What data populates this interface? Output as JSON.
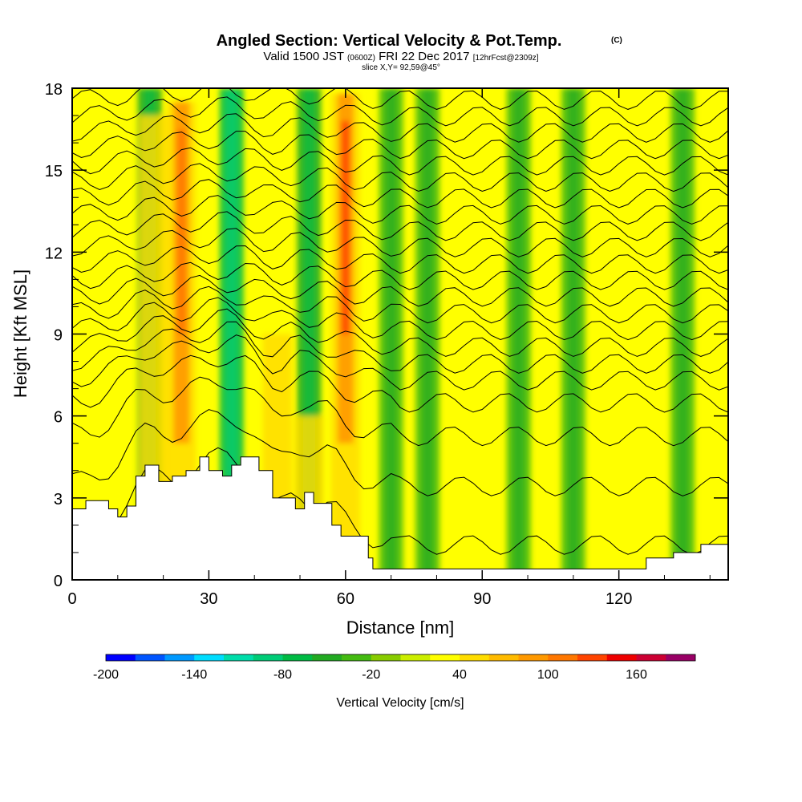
{
  "title": {
    "main": "Angled Section: Vertical Velocity & Pot.Temp.",
    "main_unit": "(C)",
    "line2_a": "Valid 1500 JST",
    "line2_b": "(0600Z)",
    "line2_c": "FRI 22 Dec 2017",
    "line2_d": "[12hrFcst@2309z]",
    "line3": "slice X,Y= 92,59@45°"
  },
  "chart_data": {
    "type": "heatmap",
    "xlabel": "Distance [nm]",
    "ylabel": "Height [Kft MSL]",
    "xlim": [
      0,
      144
    ],
    "ylim": [
      0,
      18
    ],
    "x_ticks": [
      "0",
      "30",
      "60",
      "90",
      "120"
    ],
    "x_tick_values": [
      0,
      30,
      60,
      90,
      120
    ],
    "y_ticks": [
      "0",
      "3",
      "6",
      "9",
      "12",
      "15",
      "18"
    ],
    "y_tick_values": [
      0,
      3,
      6,
      9,
      12,
      15,
      18
    ],
    "background_color": "#ffff00",
    "updraft_bands": [
      {
        "x": 24,
        "ztop": 17.5,
        "value": 110
      },
      {
        "x": 60,
        "ztop": 17.8,
        "value": 120
      },
      {
        "x": 18,
        "ztop": 17.0,
        "value": 40
      },
      {
        "x": 45,
        "ztop": 9.0,
        "value": 40
      },
      {
        "x": 52,
        "ztop": 6.0,
        "value": 30
      }
    ],
    "downdraft_bands": [
      {
        "x": 17,
        "ztop": 18,
        "value": -60
      },
      {
        "x": 35,
        "ztop": 18,
        "value": -80
      },
      {
        "x": 52,
        "ztop": 18,
        "value": -60
      },
      {
        "x": 70,
        "ztop": 18,
        "value": -40
      },
      {
        "x": 78,
        "ztop": 18,
        "value": -30
      },
      {
        "x": 98,
        "ztop": 18,
        "value": -30
      },
      {
        "x": 110,
        "ztop": 18,
        "value": -30
      },
      {
        "x": 134,
        "ztop": 18,
        "value": -30
      }
    ],
    "terrain_top_kft": [
      [
        0,
        2.6
      ],
      [
        3,
        2.9
      ],
      [
        8,
        2.6
      ],
      [
        10,
        2.3
      ],
      [
        12,
        2.7
      ],
      [
        14,
        3.8
      ],
      [
        16,
        4.2
      ],
      [
        19,
        3.6
      ],
      [
        22,
        3.8
      ],
      [
        25,
        4.0
      ],
      [
        28,
        4.5
      ],
      [
        30,
        4.0
      ],
      [
        33,
        3.8
      ],
      [
        35,
        4.2
      ],
      [
        37,
        4.5
      ],
      [
        41,
        4.0
      ],
      [
        44,
        3.0
      ],
      [
        47,
        3.0
      ],
      [
        49,
        2.6
      ],
      [
        51,
        3.2
      ],
      [
        53,
        2.8
      ],
      [
        57,
        2.0
      ],
      [
        59,
        1.6
      ],
      [
        63,
        1.6
      ],
      [
        65,
        0.8
      ],
      [
        66,
        0.4
      ],
      [
        70,
        0.4
      ],
      [
        90,
        0.4
      ],
      [
        114,
        0.4
      ],
      [
        126,
        0.8
      ],
      [
        132,
        1.0
      ],
      [
        138,
        1.3
      ],
      [
        144,
        1.3
      ]
    ],
    "theta_contour_base_heights_kft": [
      1.5,
      3.6,
      5.4,
      6.6,
      7.4,
      8.0,
      8.6,
      9.2,
      9.8,
      10.4,
      11.0,
      11.6,
      12.2,
      12.8,
      13.4,
      14.0,
      14.6,
      15.2,
      15.8,
      16.4,
      17.0,
      17.6
    ],
    "colorbar": {
      "label": "Vertical Velocity [cm/s]",
      "tick_labels": [
        "-200",
        "-140",
        "-80",
        "-20",
        "40",
        "100",
        "160"
      ],
      "tick_values": [
        -200,
        -140,
        -80,
        -20,
        40,
        100,
        160
      ],
      "min": -200,
      "max": 200,
      "step": 20,
      "colors": [
        "#0000ff",
        "#0055ff",
        "#0099ff",
        "#00ddff",
        "#00ddaa",
        "#00cc77",
        "#00bb44",
        "#22aa22",
        "#44bb11",
        "#88cc00",
        "#ccee00",
        "#ffff00",
        "#ffdd00",
        "#ffbb00",
        "#ff9900",
        "#ff7700",
        "#ff4400",
        "#ee0000",
        "#cc0033",
        "#990066"
      ]
    }
  }
}
